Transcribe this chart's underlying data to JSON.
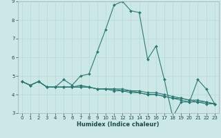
{
  "xlabel": "Humidex (Indice chaleur)",
  "bg_color": "#cce8e6",
  "grid_color": "#b8d8d6",
  "line_color": "#2a7a72",
  "x_all": [
    0,
    1,
    2,
    3,
    4,
    5,
    6,
    7,
    8,
    9,
    10,
    11,
    12,
    13,
    14,
    15,
    16,
    17,
    18,
    19,
    20,
    21,
    22,
    23
  ],
  "series": [
    [
      4.7,
      4.5,
      4.7,
      4.4,
      4.4,
      4.8,
      4.5,
      5.0,
      5.1,
      6.3,
      7.5,
      8.8,
      9.0,
      8.5,
      8.4,
      5.9,
      6.6,
      4.8,
      2.8,
      3.6,
      3.6,
      4.8,
      4.3,
      3.5
    ],
    [
      4.7,
      4.5,
      4.7,
      4.4,
      4.4,
      4.4,
      4.4,
      4.4,
      4.4,
      4.3,
      4.3,
      4.3,
      4.3,
      4.2,
      4.2,
      4.1,
      4.1,
      4.0,
      3.9,
      3.8,
      3.7,
      3.7,
      3.6,
      3.5
    ],
    [
      4.7,
      4.5,
      4.7,
      4.4,
      4.4,
      4.4,
      4.4,
      4.4,
      4.4,
      4.3,
      4.3,
      4.2,
      4.2,
      4.1,
      4.1,
      4.0,
      4.0,
      3.9,
      3.8,
      3.7,
      3.6,
      3.6,
      3.5,
      3.5
    ],
    [
      4.7,
      4.5,
      4.7,
      4.4,
      4.4,
      4.4,
      4.4,
      4.5,
      4.4,
      4.3,
      4.3,
      4.3,
      4.2,
      4.2,
      4.1,
      4.0,
      4.0,
      3.9,
      3.8,
      3.8,
      3.7,
      3.6,
      3.6,
      3.5
    ]
  ],
  "ylim": [
    3,
    9
  ],
  "xlim_min": -0.5,
  "xlim_max": 23.5,
  "yticks": [
    3,
    4,
    5,
    6,
    7,
    8,
    9
  ],
  "xticks": [
    0,
    1,
    2,
    3,
    4,
    5,
    6,
    7,
    8,
    9,
    10,
    11,
    12,
    13,
    14,
    15,
    16,
    17,
    18,
    19,
    20,
    21,
    22,
    23
  ],
  "tick_fontsize": 5.0,
  "xlabel_fontsize": 6.0,
  "marker_size": 2.0,
  "linewidth": 0.8
}
